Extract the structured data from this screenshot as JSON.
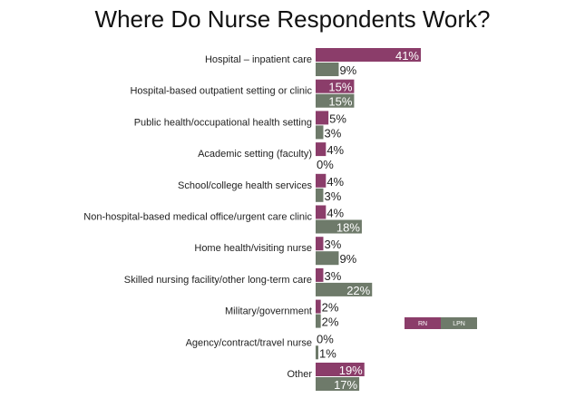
{
  "chart_data": {
    "type": "bar",
    "orientation": "horizontal",
    "title": "Where Do Nurse Respondents Work?",
    "xlabel": "",
    "ylabel": "",
    "xlim": [
      0,
      41
    ],
    "grid": false,
    "legend_position": "right",
    "categories": [
      "Hospital – inpatient care",
      "Hospital-based outpatient setting or clinic",
      "Public health/occupational health setting",
      "Academic setting (faculty)",
      "School/college health services",
      "Non-hospital-based medical office/urgent care clinic",
      "Home health/visiting nurse",
      "Skilled nursing facility/other long-term care",
      "Military/government",
      "Agency/contract/travel nurse",
      "Other"
    ],
    "series": [
      {
        "name": "RN",
        "color": "#8b3d6a",
        "values": [
          41,
          15,
          5,
          4,
          4,
          4,
          3,
          3,
          2,
          0,
          19
        ]
      },
      {
        "name": "LPN",
        "color": "#6e7a6a",
        "values": [
          9,
          15,
          3,
          0,
          3,
          18,
          9,
          22,
          2,
          1,
          17
        ]
      }
    ],
    "value_suffix": "%"
  }
}
